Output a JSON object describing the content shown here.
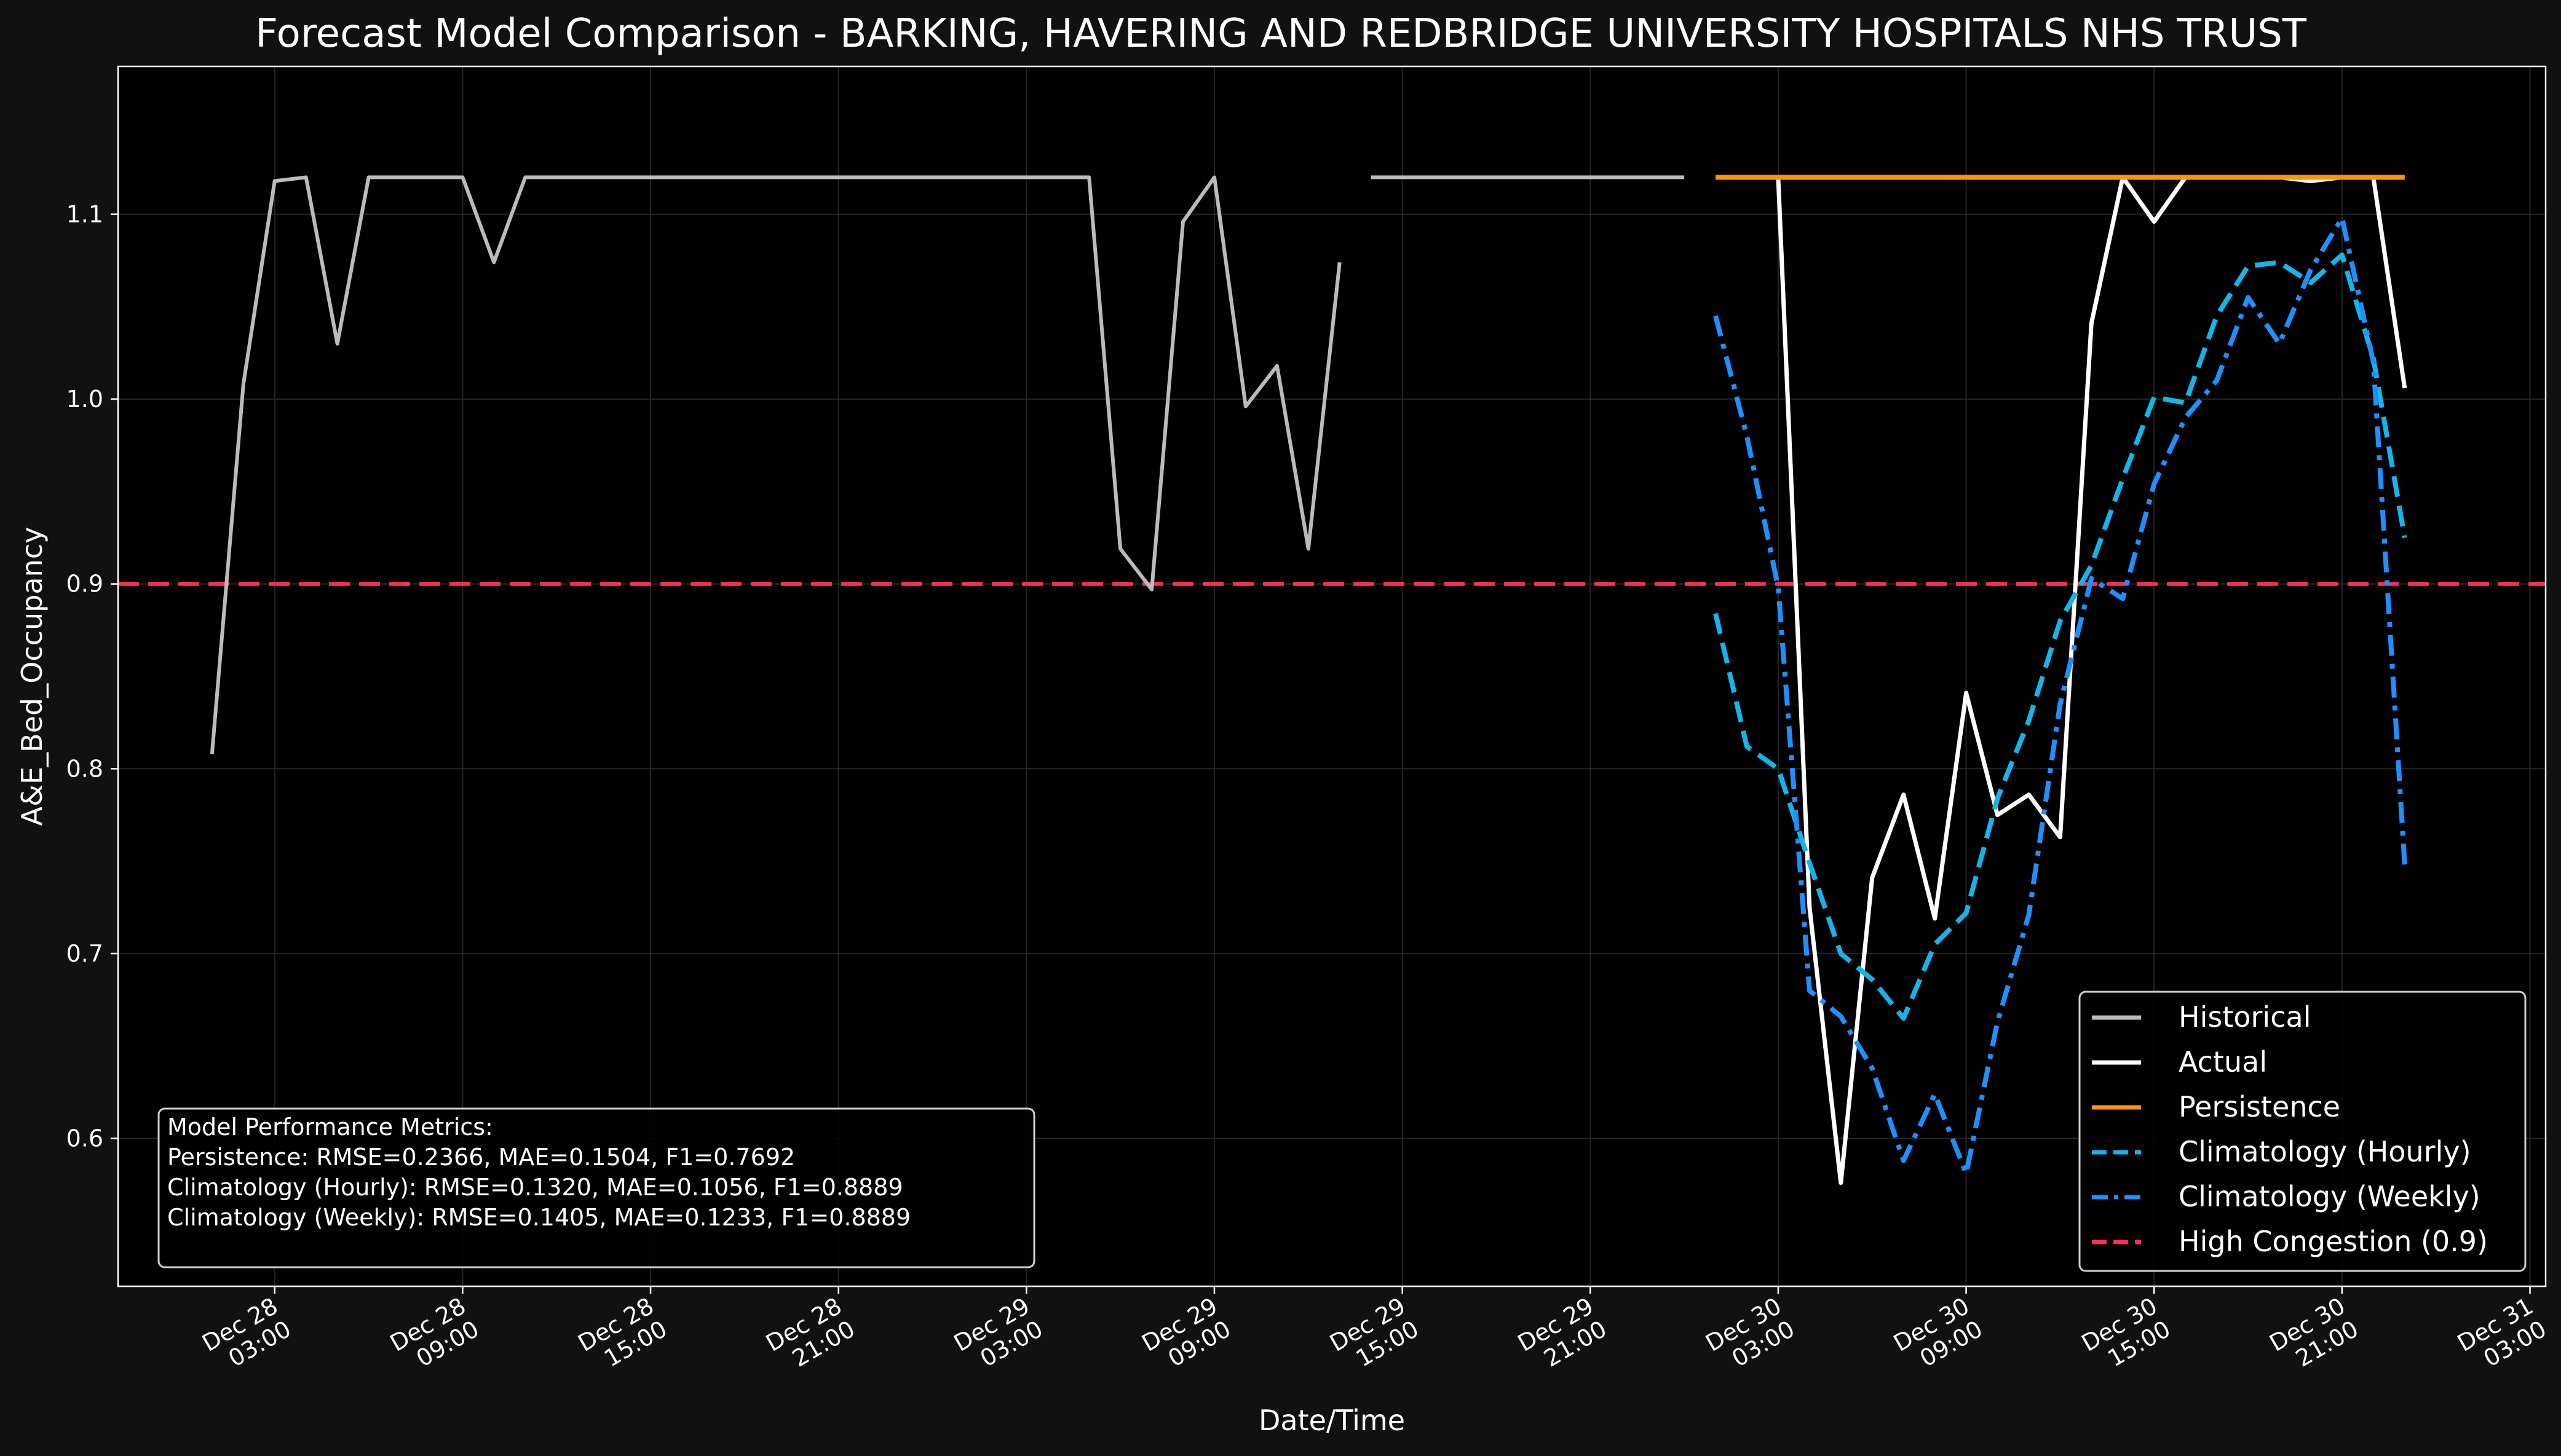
{
  "chart_data": {
    "type": "line",
    "title": "Forecast Model Comparison - BARKING, HAVERING AND REDBRIDGE UNIVERSITY HOSPITALS NHS TRUST",
    "xlabel": "Date/Time",
    "ylabel": "A&E_Bed_Occupancy",
    "xlim": [
      "2024-12-27T22:00",
      "2024-12-31T03:30"
    ],
    "ylim": [
      0.52,
      1.18
    ],
    "yticks": [
      0.6,
      0.7,
      0.8,
      0.9,
      1.0,
      1.1
    ],
    "ytick_labels": [
      "0.6",
      "0.7",
      "0.8",
      "0.9",
      "1.0",
      "1.1"
    ],
    "xticks": [
      "2024-12-28T03:00",
      "2024-12-28T09:00",
      "2024-12-28T15:00",
      "2024-12-28T21:00",
      "2024-12-29T03:00",
      "2024-12-29T09:00",
      "2024-12-29T15:00",
      "2024-12-29T21:00",
      "2024-12-30T03:00",
      "2024-12-30T09:00",
      "2024-12-30T15:00",
      "2024-12-30T21:00",
      "2024-12-31T03:00"
    ],
    "xtick_labels": [
      [
        "Dec 28",
        "03:00"
      ],
      [
        "Dec 28",
        "09:00"
      ],
      [
        "Dec 28",
        "15:00"
      ],
      [
        "Dec 28",
        "21:00"
      ],
      [
        "Dec 29",
        "03:00"
      ],
      [
        "Dec 29",
        "09:00"
      ],
      [
        "Dec 29",
        "15:00"
      ],
      [
        "Dec 29",
        "21:00"
      ],
      [
        "Dec 30",
        "03:00"
      ],
      [
        "Dec 30",
        "09:00"
      ],
      [
        "Dec 30",
        "15:00"
      ],
      [
        "Dec 30",
        "21:00"
      ],
      [
        "Dec 31",
        "03:00"
      ]
    ],
    "grid": true,
    "legend_position": "bottom-right",
    "threshold": {
      "name": "High Congestion (0.9)",
      "value": 0.9,
      "color": "#ff2e55",
      "style": "dashed"
    },
    "series": [
      {
        "name": "Historical",
        "color": "#bbbbbb",
        "style": "solid",
        "x": [
          "2024-12-28T01:00",
          "2024-12-28T02:00",
          "2024-12-28T03:00",
          "2024-12-28T04:00",
          "2024-12-28T05:00",
          "2024-12-28T06:00",
          "2024-12-28T07:00",
          "2024-12-28T08:00",
          "2024-12-28T09:00",
          "2024-12-28T10:00",
          "2024-12-28T11:00",
          "2024-12-28T12:00",
          "2024-12-28T13:00",
          "2024-12-28T14:00",
          "2024-12-28T15:00",
          "2024-12-28T16:00",
          "2024-12-28T17:00",
          "2024-12-28T18:00",
          "2024-12-28T19:00",
          "2024-12-28T20:00",
          "2024-12-28T21:00",
          "2024-12-28T22:00",
          "2024-12-28T23:00",
          "2024-12-29T00:00",
          "2024-12-29T01:00",
          "2024-12-29T02:00",
          "2024-12-29T03:00",
          "2024-12-29T04:00",
          "2024-12-29T05:00",
          "2024-12-29T06:00",
          "2024-12-29T07:00",
          "2024-12-29T08:00",
          "2024-12-29T09:00",
          "2024-12-29T10:00",
          "2024-12-29T11:00",
          "2024-12-29T12:00",
          "2024-12-29T13:00",
          "2024-12-29T14:00",
          "2024-12-29T15:00",
          "2024-12-29T16:00",
          "2024-12-29T17:00",
          "2024-12-29T18:00",
          "2024-12-29T19:00",
          "2024-12-29T20:00",
          "2024-12-29T21:00",
          "2024-12-29T22:00",
          "2024-12-29T23:00",
          "2024-12-30T00:00"
        ],
        "y": [
          0.808,
          1.008,
          1.118,
          1.12,
          1.03,
          1.12,
          1.12,
          1.12,
          1.12,
          1.074,
          1.12,
          1.12,
          1.12,
          1.12,
          1.12,
          1.12,
          1.12,
          1.12,
          1.12,
          1.12,
          1.12,
          1.12,
          1.12,
          1.12,
          1.12,
          1.12,
          1.12,
          1.12,
          1.12,
          0.919,
          0.897,
          1.096,
          1.12,
          0.996,
          1.018,
          0.919,
          1.074,
          1.12,
          1.12,
          1.12,
          1.12,
          1.12,
          1.12,
          1.12,
          1.12,
          1.12,
          1.12,
          1.12
        ]
      },
      {
        "name": "Actual",
        "color": "#ffffff",
        "style": "solid",
        "x": [
          "2024-12-30T01:00",
          "2024-12-30T02:00",
          "2024-12-30T03:00",
          "2024-12-30T04:00",
          "2024-12-30T05:00",
          "2024-12-30T06:00",
          "2024-12-30T07:00",
          "2024-12-30T08:00",
          "2024-12-30T09:00",
          "2024-12-30T10:00",
          "2024-12-30T11:00",
          "2024-12-30T12:00",
          "2024-12-30T13:00",
          "2024-12-30T14:00",
          "2024-12-30T15:00",
          "2024-12-30T16:00",
          "2024-12-30T17:00",
          "2024-12-30T18:00",
          "2024-12-30T19:00",
          "2024-12-30T20:00",
          "2024-12-30T21:00",
          "2024-12-30T22:00",
          "2024-12-30T23:00"
        ],
        "y": [
          1.12,
          1.12,
          1.12,
          0.725,
          0.576,
          0.741,
          0.786,
          0.719,
          0.841,
          0.775,
          0.786,
          0.763,
          1.041,
          1.12,
          1.096,
          1.12,
          1.12,
          1.12,
          1.12,
          1.118,
          1.12,
          1.12,
          1.006
        ]
      },
      {
        "name": "Persistence",
        "color": "#ff9500",
        "style": "solid",
        "x": [
          "2024-12-30T01:00",
          "2024-12-30T23:00"
        ],
        "y": [
          1.12,
          1.12
        ]
      },
      {
        "name": "Climatology (Hourly)",
        "color": "#13b5ea",
        "style": "dashed",
        "x": [
          "2024-12-30T01:00",
          "2024-12-30T02:00",
          "2024-12-30T03:00",
          "2024-12-30T04:00",
          "2024-12-30T05:00",
          "2024-12-30T06:00",
          "2024-12-30T07:00",
          "2024-12-30T08:00",
          "2024-12-30T09:00",
          "2024-12-30T10:00",
          "2024-12-30T11:00",
          "2024-12-30T12:00",
          "2024-12-30T13:00",
          "2024-12-30T14:00",
          "2024-12-30T15:00",
          "2024-12-30T16:00",
          "2024-12-30T17:00",
          "2024-12-30T18:00",
          "2024-12-30T19:00",
          "2024-12-30T20:00",
          "2024-12-30T21:00",
          "2024-12-30T22:00",
          "2024-12-30T23:00"
        ],
        "y": [
          0.884,
          0.812,
          0.8,
          0.749,
          0.7,
          0.686,
          0.665,
          0.705,
          0.722,
          0.784,
          0.826,
          0.88,
          0.91,
          0.957,
          1.001,
          0.998,
          1.045,
          1.072,
          1.074,
          1.063,
          1.078,
          1.022,
          0.925
        ]
      },
      {
        "name": "Climatology (Weekly)",
        "color": "#1e90ff",
        "style": "dashdot",
        "x": [
          "2024-12-30T01:00",
          "2024-12-30T02:00",
          "2024-12-30T03:00",
          "2024-12-30T04:00",
          "2024-12-30T05:00",
          "2024-12-30T06:00",
          "2024-12-30T07:00",
          "2024-12-30T08:00",
          "2024-12-30T09:00",
          "2024-12-30T10:00",
          "2024-12-30T11:00",
          "2024-12-30T12:00",
          "2024-12-30T13:00",
          "2024-12-30T14:00",
          "2024-12-30T15:00",
          "2024-12-30T16:00",
          "2024-12-30T17:00",
          "2024-12-30T18:00",
          "2024-12-30T19:00",
          "2024-12-30T20:00",
          "2024-12-30T21:00",
          "2024-12-30T22:00",
          "2024-12-30T23:00"
        ],
        "y": [
          1.045,
          0.98,
          0.898,
          0.68,
          0.666,
          0.638,
          0.588,
          0.624,
          0.581,
          0.663,
          0.721,
          0.835,
          0.903,
          0.892,
          0.954,
          0.99,
          1.01,
          1.055,
          1.03,
          1.07,
          1.098,
          1.02,
          0.748
        ]
      }
    ],
    "metrics_box": {
      "lines": [
        "Model Performance Metrics:",
        "Persistence: RMSE=0.2366, MAE=0.1504, F1=0.7692",
        "Climatology (Hourly): RMSE=0.1320, MAE=0.1056, F1=0.8889",
        "Climatology (Weekly): RMSE=0.1405, MAE=0.1233, F1=0.8889"
      ]
    }
  }
}
